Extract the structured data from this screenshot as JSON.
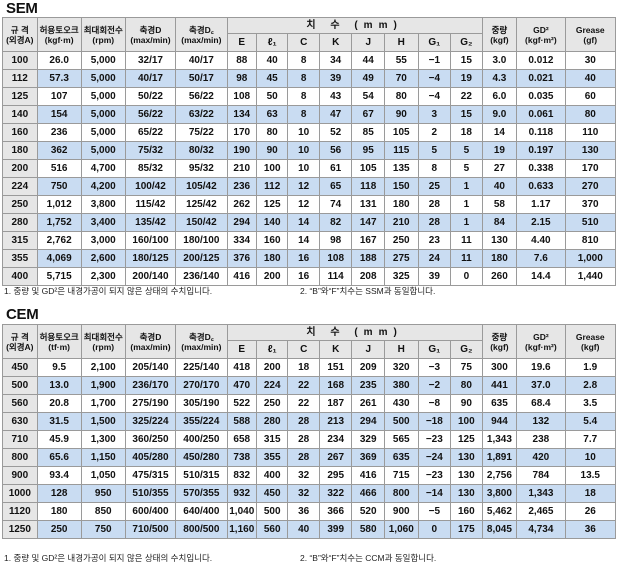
{
  "sem": {
    "title": "SEM",
    "headers": {
      "size": [
        "규 격",
        "(외경A)"
      ],
      "torque": [
        "허용토오크",
        "(kgf·m)"
      ],
      "speed": [
        "최대회전수",
        "(rpm)"
      ],
      "shaft_d": [
        "축경D",
        "(max/min)"
      ],
      "shaft_dc": [
        "축경D꜀",
        "(max/min)"
      ],
      "dimension_group": "치 수 (mm)",
      "dims": [
        "E",
        "ℓ₁",
        "C",
        "K",
        "J",
        "H",
        "G₁",
        "G₂"
      ],
      "weight": [
        "중량",
        "(kgf)"
      ],
      "gd2": [
        "GD²",
        "(kgf·m²)"
      ],
      "grease": [
        "Grease",
        "(gf)"
      ]
    },
    "rows": [
      [
        "100",
        "26.0",
        "5,000",
        "32/17",
        "40/17",
        "88",
        "40",
        "8",
        "34",
        "44",
        "55",
        "−1",
        "15",
        "3.0",
        "0.012",
        "30"
      ],
      [
        "112",
        "57.3",
        "5,000",
        "40/17",
        "50/17",
        "98",
        "45",
        "8",
        "39",
        "49",
        "70",
        "−4",
        "19",
        "4.3",
        "0.021",
        "40"
      ],
      [
        "125",
        "107",
        "5,000",
        "50/22",
        "56/22",
        "108",
        "50",
        "8",
        "43",
        "54",
        "80",
        "−4",
        "22",
        "6.0",
        "0.035",
        "60"
      ],
      [
        "140",
        "154",
        "5,000",
        "56/22",
        "63/22",
        "134",
        "63",
        "8",
        "47",
        "67",
        "90",
        "3",
        "15",
        "9.0",
        "0.061",
        "80"
      ],
      [
        "160",
        "236",
        "5,000",
        "65/22",
        "75/22",
        "170",
        "80",
        "10",
        "52",
        "85",
        "105",
        "2",
        "18",
        "14",
        "0.118",
        "110"
      ],
      [
        "180",
        "362",
        "5,000",
        "75/32",
        "80/32",
        "190",
        "90",
        "10",
        "56",
        "95",
        "115",
        "5",
        "5",
        "19",
        "0.197",
        "130"
      ],
      [
        "200",
        "516",
        "4,700",
        "85/32",
        "95/32",
        "210",
        "100",
        "10",
        "61",
        "105",
        "135",
        "8",
        "5",
        "27",
        "0.338",
        "170"
      ],
      [
        "224",
        "750",
        "4,200",
        "100/42",
        "105/42",
        "236",
        "112",
        "12",
        "65",
        "118",
        "150",
        "25",
        "1",
        "40",
        "0.633",
        "270"
      ],
      [
        "250",
        "1,012",
        "3,800",
        "115/42",
        "125/42",
        "262",
        "125",
        "12",
        "74",
        "131",
        "180",
        "28",
        "1",
        "58",
        "1.17",
        "370"
      ],
      [
        "280",
        "1,752",
        "3,400",
        "135/42",
        "150/42",
        "294",
        "140",
        "14",
        "82",
        "147",
        "210",
        "28",
        "1",
        "84",
        "2.15",
        "510"
      ],
      [
        "315",
        "2,762",
        "3,000",
        "160/100",
        "180/100",
        "334",
        "160",
        "14",
        "98",
        "167",
        "250",
        "23",
        "11",
        "130",
        "4.40",
        "810"
      ],
      [
        "355",
        "4,069",
        "2,600",
        "180/125",
        "200/125",
        "376",
        "180",
        "16",
        "108",
        "188",
        "275",
        "24",
        "11",
        "180",
        "7.6",
        "1,000"
      ],
      [
        "400",
        "5,715",
        "2,300",
        "200/140",
        "236/140",
        "416",
        "200",
        "16",
        "114",
        "208",
        "325",
        "39",
        "0",
        "260",
        "14.4",
        "1,440"
      ]
    ],
    "note1": "1. 중량 및 GD²은 내경가공이 되지 않은 상태의 수치입니다.",
    "note2": "2. “B”와“F”치수는 SSM과 동일합니다."
  },
  "cem": {
    "title": "CEM",
    "headers": {
      "size": [
        "규 격",
        "(외경A)"
      ],
      "torque": [
        "허용토오크",
        "(tf·m)"
      ],
      "speed": [
        "최대회전수",
        "(rpm)"
      ],
      "shaft_d": [
        "축경D",
        "(max/min)"
      ],
      "shaft_dc": [
        "축경D꜀",
        "(max/min)"
      ],
      "dimension_group": "치 수 (mm)",
      "dims": [
        "E",
        "ℓ₁",
        "C",
        "K",
        "J",
        "H",
        "G₁",
        "G₂"
      ],
      "weight": [
        "중량",
        "(kgf)"
      ],
      "gd2": [
        "GD²",
        "(kgf·m²)"
      ],
      "grease": [
        "Grease",
        "(kgf)"
      ]
    },
    "rows": [
      [
        "450",
        "9.5",
        "2,100",
        "205/140",
        "225/140",
        "418",
        "200",
        "18",
        "151",
        "209",
        "320",
        "−3",
        "75",
        "300",
        "19.6",
        "1.9"
      ],
      [
        "500",
        "13.0",
        "1,900",
        "236/170",
        "270/170",
        "470",
        "224",
        "22",
        "168",
        "235",
        "380",
        "−2",
        "80",
        "441",
        "37.0",
        "2.8"
      ],
      [
        "560",
        "20.8",
        "1,700",
        "275/190",
        "305/190",
        "522",
        "250",
        "22",
        "187",
        "261",
        "430",
        "−8",
        "90",
        "635",
        "68.4",
        "3.5"
      ],
      [
        "630",
        "31.5",
        "1,500",
        "325/224",
        "355/224",
        "588",
        "280",
        "28",
        "213",
        "294",
        "500",
        "−18",
        "100",
        "944",
        "132",
        "5.4"
      ],
      [
        "710",
        "45.9",
        "1,300",
        "360/250",
        "400/250",
        "658",
        "315",
        "28",
        "234",
        "329",
        "565",
        "−23",
        "125",
        "1,343",
        "238",
        "7.7"
      ],
      [
        "800",
        "65.6",
        "1,150",
        "405/280",
        "450/280",
        "738",
        "355",
        "28",
        "267",
        "369",
        "635",
        "−24",
        "130",
        "1,891",
        "420",
        "10"
      ],
      [
        "900",
        "93.4",
        "1,050",
        "475/315",
        "510/315",
        "832",
        "400",
        "32",
        "295",
        "416",
        "715",
        "−23",
        "130",
        "2,756",
        "784",
        "13.5"
      ],
      [
        "1000",
        "128",
        "950",
        "510/355",
        "570/355",
        "932",
        "450",
        "32",
        "322",
        "466",
        "800",
        "−14",
        "130",
        "3,800",
        "1,343",
        "18"
      ],
      [
        "1120",
        "180",
        "850",
        "600/400",
        "640/400",
        "1,040",
        "500",
        "36",
        "366",
        "520",
        "900",
        "−5",
        "160",
        "5,462",
        "2,465",
        "26"
      ],
      [
        "1250",
        "250",
        "750",
        "710/500",
        "800/500",
        "1,160",
        "560",
        "40",
        "399",
        "580",
        "1,060",
        "0",
        "175",
        "8,045",
        "4,734",
        "36"
      ]
    ],
    "note1": "1. 중량 및 GD²은 내경가공이 되지 않은 상태의 수치입니다.",
    "note2": "2. “B”와“F”치수는 CCM과 동일합니다."
  },
  "colors": {
    "header_bg": "#e6e6e6",
    "highlight_row": "#c9dcf2",
    "grid": "#9a9a9a"
  }
}
